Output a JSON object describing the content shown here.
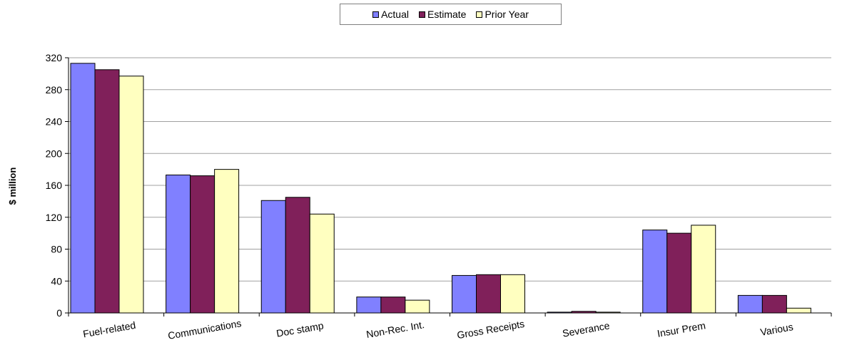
{
  "chart_data": {
    "type": "bar",
    "title": "",
    "xlabel": "",
    "ylabel": "$ million",
    "ylim": [
      0,
      320
    ],
    "yticks": [
      0,
      40,
      80,
      120,
      160,
      200,
      240,
      280,
      320
    ],
    "grid": true,
    "legend_position": "top-center",
    "categories": [
      "Fuel-related",
      "Communications",
      "Doc stamp",
      "Non-Rec. Int.",
      "Gross Receipts",
      "Severance",
      "Insur Prem",
      "Various"
    ],
    "series": [
      {
        "name": "Actual",
        "color": "#8080ff",
        "values": [
          313,
          173,
          141,
          20,
          47,
          1,
          104,
          22
        ]
      },
      {
        "name": "Estimate",
        "color": "#80205a",
        "values": [
          305,
          172,
          145,
          20,
          48,
          2,
          100,
          22
        ]
      },
      {
        "name": "Prior Year",
        "color": "#ffffc0",
        "values": [
          297,
          180,
          124,
          16,
          48,
          1,
          110,
          6
        ]
      }
    ]
  }
}
